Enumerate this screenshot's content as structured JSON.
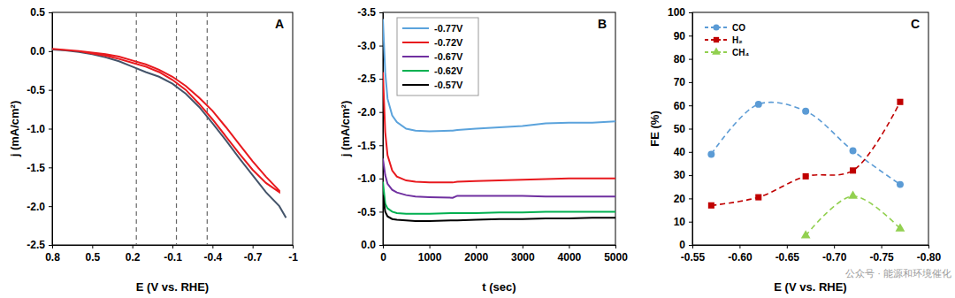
{
  "chart_data": [
    {
      "type": "line",
      "title": "A",
      "x_label": "E (V vs. RHE)",
      "y_label": "j (mA/cm²)",
      "xlim": [
        0.8,
        -1
      ],
      "xticks": [
        0.8,
        0.5,
        0.2,
        -0.1,
        -0.4,
        -0.7,
        -1
      ],
      "ylim": [
        -2.5,
        0.5
      ],
      "yticks": [
        0.5,
        {
          "value": 0,
          "label": "0.0"
        },
        -0.5,
        {
          "value": -1,
          "label": "-1.0"
        },
        -1.5,
        {
          "value": -2,
          "label": "-2.0"
        },
        -2.5
      ],
      "reference_lines": [
        0.17,
        -0.13,
        -0.36
      ],
      "series": [
        {
          "color": "#44546a",
          "line_style": "solid",
          "x": [
            0.8,
            0.7,
            0.6,
            0.5,
            0.4,
            0.3,
            0.2,
            0.1,
            0.0,
            -0.1,
            -0.2,
            -0.3,
            -0.4,
            -0.5,
            -0.6,
            -0.7,
            -0.8,
            -0.9,
            -0.95
          ],
          "values": [
            0.02,
            0.01,
            -0.01,
            -0.04,
            -0.08,
            -0.13,
            -0.2,
            -0.27,
            -0.33,
            -0.42,
            -0.55,
            -0.72,
            -0.93,
            -1.15,
            -1.38,
            -1.6,
            -1.82,
            -2.0,
            -2.15
          ]
        },
        {
          "color": "#e8191e",
          "line_style": "solid",
          "x": [
            0.8,
            0.6,
            0.5,
            0.4,
            0.3,
            0.2,
            0.1,
            0.0,
            -0.1,
            -0.2,
            -0.3,
            -0.4,
            -0.5,
            -0.6,
            -0.7,
            -0.8,
            -0.9,
            -0.9,
            -0.8,
            -0.7,
            -0.6,
            -0.5,
            -0.4,
            -0.3,
            -0.2,
            -0.1,
            0.0,
            0.1,
            0.2,
            0.3,
            0.4,
            0.5,
            0.6,
            0.8
          ],
          "values": [
            0.03,
            0.0,
            -0.03,
            -0.06,
            -0.1,
            -0.15,
            -0.2,
            -0.27,
            -0.37,
            -0.5,
            -0.68,
            -0.88,
            -1.1,
            -1.32,
            -1.53,
            -1.7,
            -1.82,
            -1.8,
            -1.62,
            -1.42,
            -1.2,
            -0.98,
            -0.77,
            -0.6,
            -0.45,
            -0.33,
            -0.24,
            -0.17,
            -0.12,
            -0.07,
            -0.04,
            -0.02,
            0.0,
            0.03
          ]
        }
      ]
    },
    {
      "type": "line",
      "title": "B",
      "x_label": "t (sec)",
      "y_label": "j (mA/cm²)",
      "xlim": [
        0,
        5000
      ],
      "xticks": [
        0,
        1000,
        2000,
        3000,
        4000,
        5000
      ],
      "ylim": [
        0,
        -3.5
      ],
      "yticks": [
        {
          "value": 0,
          "label": "0.0"
        },
        -0.5,
        {
          "value": -1,
          "label": "-1.0"
        },
        -1.5,
        {
          "value": -2,
          "label": "-2.0"
        },
        -2.5,
        {
          "value": -3,
          "label": "-3.0"
        },
        -3.5
      ],
      "legend": "top-left",
      "x": [
        0,
        50,
        100,
        200,
        300,
        500,
        700,
        1000,
        1500,
        1600,
        2000,
        2500,
        3000,
        3500,
        4000,
        4500,
        5000
      ],
      "series": [
        {
          "name": "-0.77V",
          "color": "#5ba3dc",
          "values": [
            -3.4,
            -2.6,
            -2.2,
            -1.95,
            -1.85,
            -1.75,
            -1.72,
            -1.71,
            -1.72,
            -1.73,
            -1.75,
            -1.77,
            -1.79,
            -1.83,
            -1.84,
            -1.84,
            -1.86
          ]
        },
        {
          "name": "-0.72V",
          "color": "#e8191e",
          "values": [
            -2.6,
            -1.7,
            -1.35,
            -1.12,
            -1.03,
            -0.97,
            -0.95,
            -0.94,
            -0.94,
            -0.95,
            -0.96,
            -0.97,
            -0.98,
            -0.99,
            -1.0,
            -1.0,
            -1.0
          ]
        },
        {
          "name": "-0.67V",
          "color": "#7030a0",
          "values": [
            -1.3,
            -1.05,
            -0.92,
            -0.83,
            -0.79,
            -0.75,
            -0.73,
            -0.72,
            -0.71,
            -0.74,
            -0.74,
            -0.74,
            -0.74,
            -0.73,
            -0.73,
            -0.73,
            -0.73
          ]
        },
        {
          "name": "-0.62V",
          "color": "#00b050",
          "values": [
            -0.95,
            -0.62,
            -0.55,
            -0.5,
            -0.48,
            -0.47,
            -0.47,
            -0.47,
            -0.48,
            -0.48,
            -0.48,
            -0.49,
            -0.49,
            -0.5,
            -0.5,
            -0.5,
            -0.5
          ]
        },
        {
          "name": "-0.57V",
          "color": "#000000",
          "values": [
            -0.75,
            -0.5,
            -0.43,
            -0.39,
            -0.38,
            -0.37,
            -0.36,
            -0.36,
            -0.37,
            -0.37,
            -0.38,
            -0.39,
            -0.39,
            -0.4,
            -0.4,
            -0.41,
            -0.41
          ]
        }
      ]
    },
    {
      "type": "line",
      "title": "C",
      "x_label": "E (V vs. RHE)",
      "y_label": "FE (%)",
      "xlim": [
        -0.55,
        -0.8
      ],
      "xticks": [
        -0.55,
        {
          "value": -0.6,
          "label": "-0.60"
        },
        -0.65,
        {
          "value": -0.7,
          "label": "-0.70"
        },
        -0.75,
        {
          "value": -0.8,
          "label": "-0.80"
        }
      ],
      "ylim": [
        0,
        100
      ],
      "yticks": [
        0,
        10,
        20,
        30,
        40,
        50,
        60,
        70,
        80,
        90,
        100
      ],
      "legend": "top-left",
      "annotations": [
        "公众号 · 能源和环境催化"
      ],
      "x": [
        -0.57,
        -0.62,
        -0.67,
        -0.72,
        -0.77
      ],
      "series": [
        {
          "name": "CO",
          "color": "#5b9bd5",
          "marker": "circle",
          "line_style": "dashed",
          "values": [
            39,
            60.5,
            57.5,
            40.5,
            26
          ]
        },
        {
          "name": "H₂",
          "color": "#c00000",
          "marker": "square",
          "line_style": "dashed",
          "values": [
            17,
            20.5,
            29.5,
            32,
            61.5
          ]
        },
        {
          "name": "CH₄",
          "color": "#92d050",
          "marker": "triangle",
          "line_style": "dashed",
          "values": [
            null,
            null,
            4,
            21,
            7
          ]
        }
      ]
    }
  ]
}
